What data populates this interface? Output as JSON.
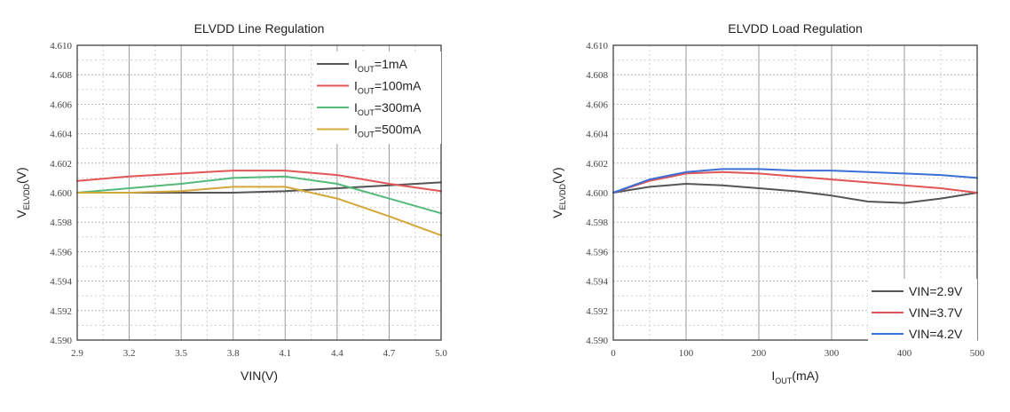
{
  "chart_data": [
    {
      "type": "line",
      "title": "ELVDD Line Regulation",
      "xlabel": "VIN(V)",
      "ylabel": {
        "main": "V",
        "sub": "ELVDD",
        "suffix": "(V)"
      },
      "xlim": [
        2.9,
        5.0
      ],
      "ylim": [
        4.59,
        4.61
      ],
      "xticks": [
        2.9,
        3.2,
        3.5,
        3.8,
        4.1,
        4.4,
        4.7,
        5.0
      ],
      "xtick_labels": [
        "2.9",
        "3.2",
        "3.5",
        "3.8",
        "4.1",
        "4.4",
        "4.7",
        "5.0"
      ],
      "yticks": [
        4.59,
        4.592,
        4.594,
        4.596,
        4.598,
        4.6,
        4.602,
        4.604,
        4.606,
        4.608,
        4.61
      ],
      "ytick_labels": [
        "4.590",
        "4.592",
        "4.594",
        "4.596",
        "4.598",
        "4.600",
        "4.602",
        "4.604",
        "4.606",
        "4.608",
        "4.610"
      ],
      "legend_position": "top-right",
      "series": [
        {
          "name": "IOUT=1mA",
          "label": {
            "main": "I",
            "sub": "OUT",
            "suffix": "=1mA"
          },
          "color": "#555555",
          "x": [
            2.9,
            3.2,
            3.5,
            3.8,
            4.1,
            4.4,
            4.7,
            5.0
          ],
          "y": [
            4.6,
            4.6,
            4.6,
            4.6,
            4.6001,
            4.6003,
            4.6005,
            4.6007
          ]
        },
        {
          "name": "IOUT=100mA",
          "label": {
            "main": "I",
            "sub": "OUT",
            "suffix": "=100mA"
          },
          "color": "#e05555",
          "x": [
            2.9,
            3.2,
            3.5,
            3.8,
            4.1,
            4.4,
            4.7,
            5.0
          ],
          "y": [
            4.6008,
            4.6011,
            4.6013,
            4.6015,
            4.6015,
            4.6012,
            4.6006,
            4.6001
          ]
        },
        {
          "name": "IOUT=300mA",
          "label": {
            "main": "I",
            "sub": "OUT",
            "suffix": "=300mA"
          },
          "color": "#55b97a",
          "x": [
            2.9,
            3.2,
            3.5,
            3.8,
            4.1,
            4.4,
            4.7,
            5.0
          ],
          "y": [
            4.6,
            4.6003,
            4.6006,
            4.601,
            4.6011,
            4.6006,
            4.5996,
            4.5986
          ]
        },
        {
          "name": "IOUT=500mA",
          "label": {
            "main": "I",
            "sub": "OUT",
            "suffix": "=500mA"
          },
          "color": "#d4a73a",
          "x": [
            2.9,
            3.2,
            3.5,
            3.8,
            4.1,
            4.4,
            4.7,
            5.0
          ],
          "y": [
            4.6,
            4.6,
            4.6001,
            4.6004,
            4.6004,
            4.5996,
            4.5984,
            4.5971
          ]
        }
      ]
    },
    {
      "type": "line",
      "title": "ELVDD Load Regulation",
      "xlabel": {
        "main": "I",
        "sub": "OUT",
        "suffix": "(mA)"
      },
      "ylabel": {
        "main": "V",
        "sub": "ELVDD",
        "suffix": "(V)"
      },
      "xlim": [
        0,
        500
      ],
      "ylim": [
        4.59,
        4.61
      ],
      "xticks": [
        0,
        100,
        200,
        300,
        400,
        500
      ],
      "xtick_labels": [
        "0",
        "100",
        "200",
        "300",
        "400",
        "500"
      ],
      "yticks": [
        4.59,
        4.592,
        4.594,
        4.596,
        4.598,
        4.6,
        4.602,
        4.604,
        4.606,
        4.608,
        4.61
      ],
      "ytick_labels": [
        "4.590",
        "4.592",
        "4.594",
        "4.596",
        "4.598",
        "4.600",
        "4.602",
        "4.604",
        "4.606",
        "4.608",
        "4.610"
      ],
      "legend_position": "bottom-right",
      "series": [
        {
          "name": "VIN=2.9V",
          "label": {
            "main": "VIN=2.9V"
          },
          "color": "#555555",
          "x": [
            0,
            50,
            100,
            150,
            200,
            250,
            300,
            350,
            400,
            450,
            500
          ],
          "y": [
            4.6,
            4.6004,
            4.6006,
            4.6005,
            4.6003,
            4.6001,
            4.5998,
            4.5994,
            4.5993,
            4.5996,
            4.6
          ]
        },
        {
          "name": "VIN=3.7V",
          "label": {
            "main": "VIN=3.7V"
          },
          "color": "#e05555",
          "x": [
            0,
            50,
            100,
            150,
            200,
            250,
            300,
            350,
            400,
            450,
            500
          ],
          "y": [
            4.6,
            4.6008,
            4.6013,
            4.6014,
            4.6013,
            4.6011,
            4.6009,
            4.6007,
            4.6005,
            4.6003,
            4.6
          ]
        },
        {
          "name": "VIN=4.2V",
          "label": {
            "main": "VIN=4.2V"
          },
          "color": "#3a6fd8",
          "x": [
            0,
            50,
            100,
            150,
            200,
            250,
            300,
            350,
            400,
            450,
            500
          ],
          "y": [
            4.6,
            4.6009,
            4.6014,
            4.6016,
            4.6016,
            4.6015,
            4.6015,
            4.6014,
            4.6013,
            4.6012,
            4.601
          ]
        }
      ]
    }
  ]
}
